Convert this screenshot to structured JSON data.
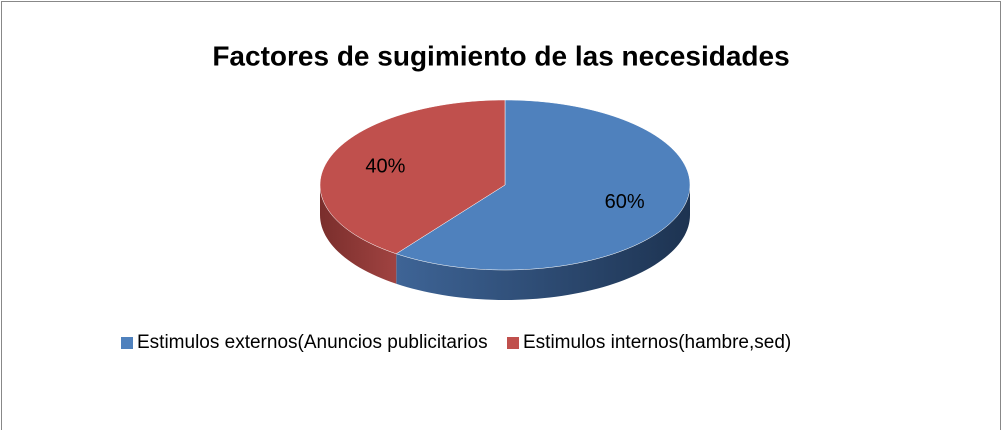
{
  "chart_data": {
    "type": "pie",
    "title": "Factores de sugimiento de las necesidades",
    "categories": [
      "Estimulos externos(Anuncios publicitarios",
      "Estimulos internos(hambre,sed)"
    ],
    "values": [
      60,
      40
    ],
    "value_labels": [
      "60%",
      "40%"
    ],
    "colors": [
      "#4f81bd",
      "#c0504d"
    ],
    "three_d": true,
    "legend": "bottom"
  }
}
